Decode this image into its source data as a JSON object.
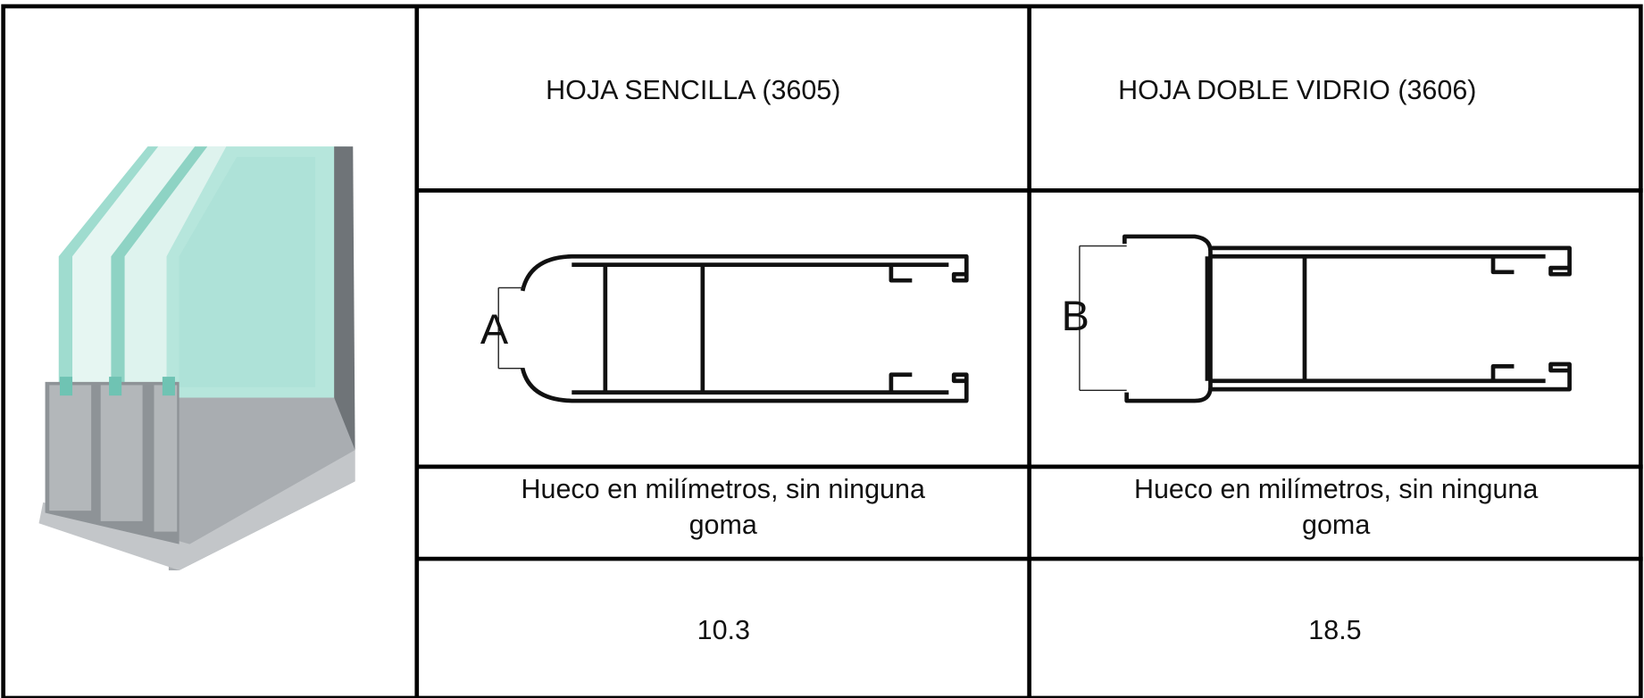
{
  "columns": [
    {
      "header": "HOJA SENCILLA (3605)",
      "label": "A",
      "description": "Hueco en milímetros, sin ninguna goma",
      "value": 10.3
    },
    {
      "header": "HOJA DOBLE VIDRIO (3606)",
      "label": "B",
      "description": "Hueco en milímetros, sin ninguna goma",
      "value": 18.5
    }
  ]
}
